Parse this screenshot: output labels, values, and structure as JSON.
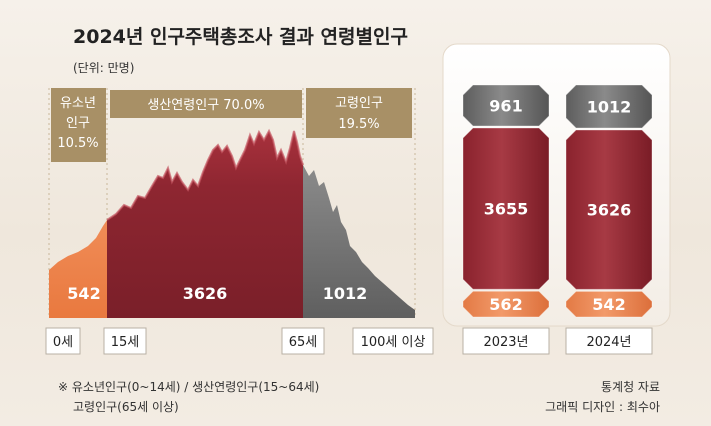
{
  "title": "2024년 인구주택총조사 결과 연령별인구",
  "unit": "(단위: 만명)",
  "chart_data": [
    {
      "type": "area",
      "title": "",
      "x_ticks": [
        "0세",
        "15세",
        "65세",
        "100세 이상"
      ],
      "series": [
        {
          "name": "유소년인구",
          "share_label": "10.5%",
          "value": 542,
          "color": "#ee8450"
        },
        {
          "name": "생산연령인구",
          "share_label": "70.0%",
          "value": 3626,
          "color": "#8c2530"
        },
        {
          "name": "고령인구",
          "share_label": "19.5%",
          "value": 1012,
          "color": "#717171"
        }
      ]
    },
    {
      "type": "bar",
      "stacked": true,
      "categories": [
        "2023년",
        "2024년"
      ],
      "series": [
        {
          "name": "유소년인구",
          "values": [
            562,
            542
          ],
          "color": "#ee8450"
        },
        {
          "name": "생산연령인구",
          "values": [
            3655,
            3626
          ],
          "color": "#8c2530"
        },
        {
          "name": "고령인구",
          "values": [
            961,
            1012
          ],
          "color": "#6c6c6c"
        }
      ]
    }
  ],
  "labels": {
    "youth_line1": "유소년",
    "youth_line2": "인구",
    "youth_pct": "10.5%",
    "working": "생산연령인구 70.0%",
    "elderly": "고령인구",
    "elderly_pct": "19.5%"
  },
  "footnote": {
    "line1": "※ 유소년인구(0~14세) / 생산연령인구(15~64세)",
    "line2": "고령인구(65세 이상)"
  },
  "source": "통계청 자료",
  "credit": "그래픽 디자인 : 최수아"
}
